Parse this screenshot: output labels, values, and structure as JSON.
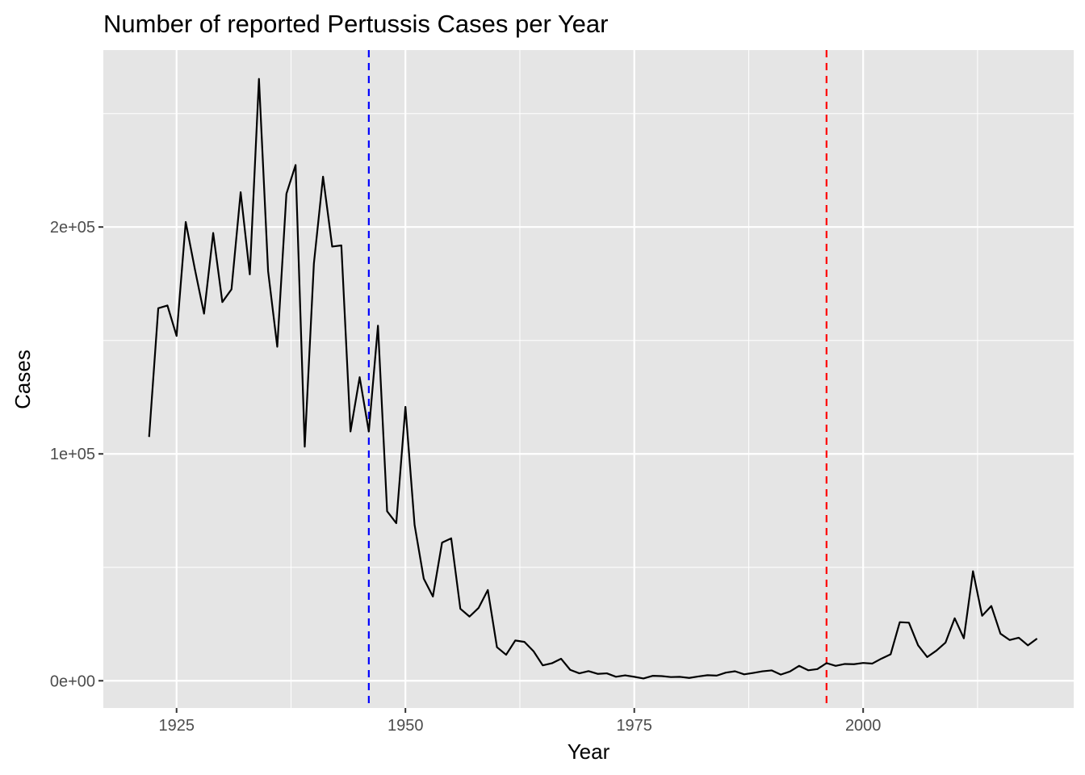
{
  "chart_data": {
    "type": "line",
    "title": "Number of reported Pertussis Cases per Year",
    "xlabel": "Year",
    "ylabel": "Cases",
    "xlim": [
      1917,
      2023
    ],
    "ylim": [
      -12000,
      278000
    ],
    "x_ticks": [
      1925,
      1950,
      1975,
      2000
    ],
    "x_tick_labels": [
      "1925",
      "1950",
      "1975",
      "2000"
    ],
    "y_ticks": [
      0,
      100000,
      200000
    ],
    "y_tick_labels": [
      "0e+00",
      "1e+05",
      "2e+05"
    ],
    "grid": true,
    "background": "#e5e5e5",
    "line_color": "#000000",
    "series": [
      {
        "x": [
          1922,
          1923,
          1924,
          1925,
          1926,
          1927,
          1928,
          1929,
          1930,
          1931,
          1932,
          1933,
          1934,
          1935,
          1936,
          1937,
          1938,
          1939,
          1940,
          1941,
          1942,
          1943,
          1944,
          1945,
          1946,
          1947,
          1948,
          1949,
          1950,
          1951,
          1952,
          1953,
          1954,
          1955,
          1956,
          1957,
          1958,
          1959,
          1960,
          1961,
          1962,
          1963,
          1964,
          1965,
          1966,
          1967,
          1968,
          1969,
          1970,
          1971,
          1972,
          1973,
          1974,
          1975,
          1976,
          1977,
          1978,
          1979,
          1980,
          1981,
          1982,
          1983,
          1984,
          1985,
          1986,
          1987,
          1988,
          1989,
          1990,
          1991,
          1992,
          1993,
          1994,
          1995,
          1996,
          1997,
          1998,
          1999,
          2000,
          2001,
          2002,
          2003,
          2004,
          2005,
          2006,
          2007,
          2008,
          2009,
          2010,
          2011,
          2012,
          2013,
          2014,
          2015,
          2016,
          2017,
          2018,
          2019
        ],
        "y": [
          107473,
          164191,
          165418,
          152003,
          202210,
          181411,
          161799,
          197371,
          166914,
          172559,
          215343,
          179135,
          265269,
          180518,
          147237,
          214652,
          227319,
          103188,
          183866,
          222202,
          191383,
          191890,
          109873,
          133792,
          109860,
          156517,
          74715,
          69479,
          120718,
          68687,
          45030,
          37129,
          60886,
          62786,
          31732,
          28295,
          32148,
          40005,
          14809,
          11468,
          17749,
          17135,
          13005,
          6799,
          7717,
          9718,
          4810,
          3285,
          4249,
          3036,
          3287,
          1759,
          2402,
          1738,
          1010,
          2177,
          2063,
          1623,
          1730,
          1248,
          1895,
          2463,
          2276,
          3589,
          4195,
          2823,
          3450,
          4157,
          4570,
          2719,
          4083,
          6586,
          4617,
          5137,
          7796,
          6564,
          7405,
          7298,
          7867,
          7580,
          9771,
          11647,
          25827,
          25616,
          15632,
          10454,
          13278,
          16858,
          27550,
          18719,
          48277,
          28639,
          32971,
          20762,
          17972,
          18975,
          15609,
          18617
        ]
      }
    ],
    "reference_lines": [
      {
        "x": 1946,
        "color": "#0000ff",
        "style": "dashed"
      },
      {
        "x": 1996,
        "color": "#ff0000",
        "style": "dashed"
      }
    ]
  }
}
